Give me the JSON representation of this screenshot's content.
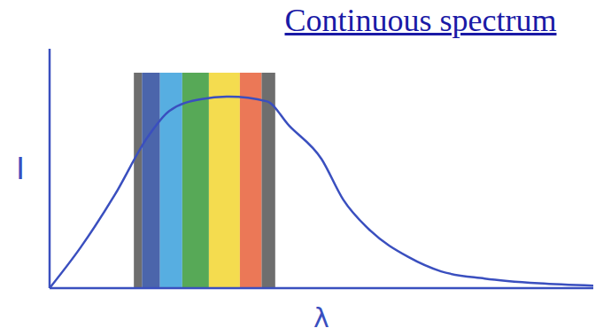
{
  "chart_data": {
    "type": "line",
    "title": "Continuous spectrum",
    "x_label": "λ",
    "y_label": "I",
    "x": [
      0,
      5.7,
      12,
      18,
      22,
      28,
      33,
      40,
      44,
      50,
      54,
      59,
      66,
      72,
      80,
      90,
      100
    ],
    "values": [
      0,
      17,
      39,
      63,
      74,
      79,
      80,
      78,
      68,
      54,
      37,
      24,
      13,
      7,
      4,
      2,
      1
    ],
    "color": "#3a4fbf",
    "xlim": [
      0,
      100
    ],
    "ylim": [
      0,
      100
    ],
    "tick_labels": false,
    "spectrum_bands": [
      {
        "x0": 15.5,
        "x1": 17,
        "y0": 0,
        "y1": 90,
        "color": "#555555"
      },
      {
        "x0": 17,
        "x1": 20.3,
        "y0": 0,
        "y1": 90,
        "color": "#2c4a9c"
      },
      {
        "x0": 20.3,
        "x1": 24.4,
        "y0": 0,
        "y1": 90,
        "color": "#3aa0dc"
      },
      {
        "x0": 24.4,
        "x1": 29.3,
        "y0": 0,
        "y1": 90,
        "color": "#3a9a3a"
      },
      {
        "x0": 29.3,
        "x1": 35,
        "y0": 0,
        "y1": 90,
        "color": "#f2d630"
      },
      {
        "x0": 35,
        "x1": 39,
        "y0": 0,
        "y1": 90,
        "color": "#e8603a"
      },
      {
        "x0": 39,
        "x1": 41.5,
        "y0": 0,
        "y1": 90,
        "color": "#555555"
      }
    ]
  }
}
